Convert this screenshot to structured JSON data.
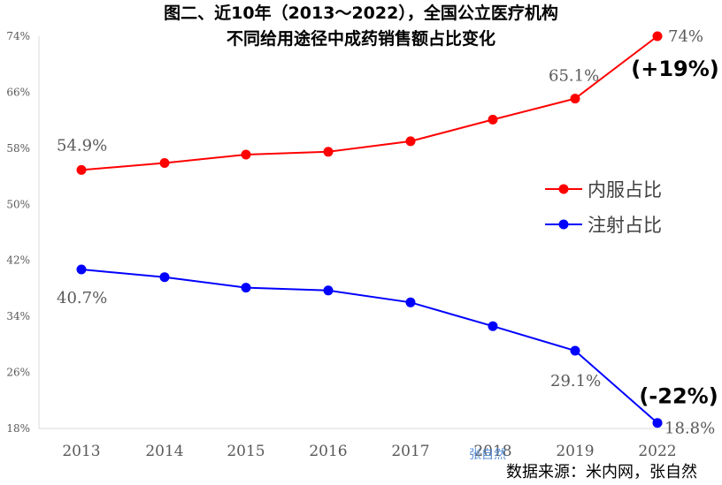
{
  "chart_data": {
    "type": "line",
    "title": [
      "图二、近10年（2013～2022），全国公立医疗机构",
      "不同给用途径中成药销售额占比变化"
    ],
    "categories": [
      "2013",
      "2014",
      "2015",
      "2016",
      "2017",
      "2018",
      "2019",
      "2022"
    ],
    "ylim": [
      18,
      74
    ],
    "yticks": [
      "74%",
      "66%",
      "58%",
      "50%",
      "42%",
      "34%",
      "26%",
      "18%"
    ],
    "ytick_values": [
      74,
      66,
      58,
      50,
      42,
      34,
      26,
      18
    ],
    "series": [
      {
        "name": "内服占比",
        "color": "#ff0000",
        "values": [
          54.9,
          55.9,
          57.1,
          57.5,
          59.0,
          62.1,
          65.1,
          74.0
        ]
      },
      {
        "name": "注射占比",
        "color": "#0000ff",
        "values": [
          40.7,
          39.6,
          38.1,
          37.7,
          36.0,
          32.6,
          29.1,
          18.8
        ]
      }
    ],
    "data_labels": [
      {
        "series": 0,
        "index": 0,
        "text": "54.9%"
      },
      {
        "series": 0,
        "index": 6,
        "text": "65.1%"
      },
      {
        "series": 0,
        "index": 7,
        "text": "74%"
      },
      {
        "series": 1,
        "index": 0,
        "text": "40.7%"
      },
      {
        "series": 1,
        "index": 6,
        "text": "29.1%"
      },
      {
        "series": 1,
        "index": 7,
        "text": "18.8%"
      }
    ],
    "annotations": [
      {
        "series": 0,
        "index": 7,
        "text": "(+19%)"
      },
      {
        "series": 1,
        "index": 7,
        "text": "(-22%)"
      }
    ],
    "legend_position": "right-middle",
    "grid": false
  },
  "source": "数据来源：米内网，张自然",
  "watermark": "张自然"
}
